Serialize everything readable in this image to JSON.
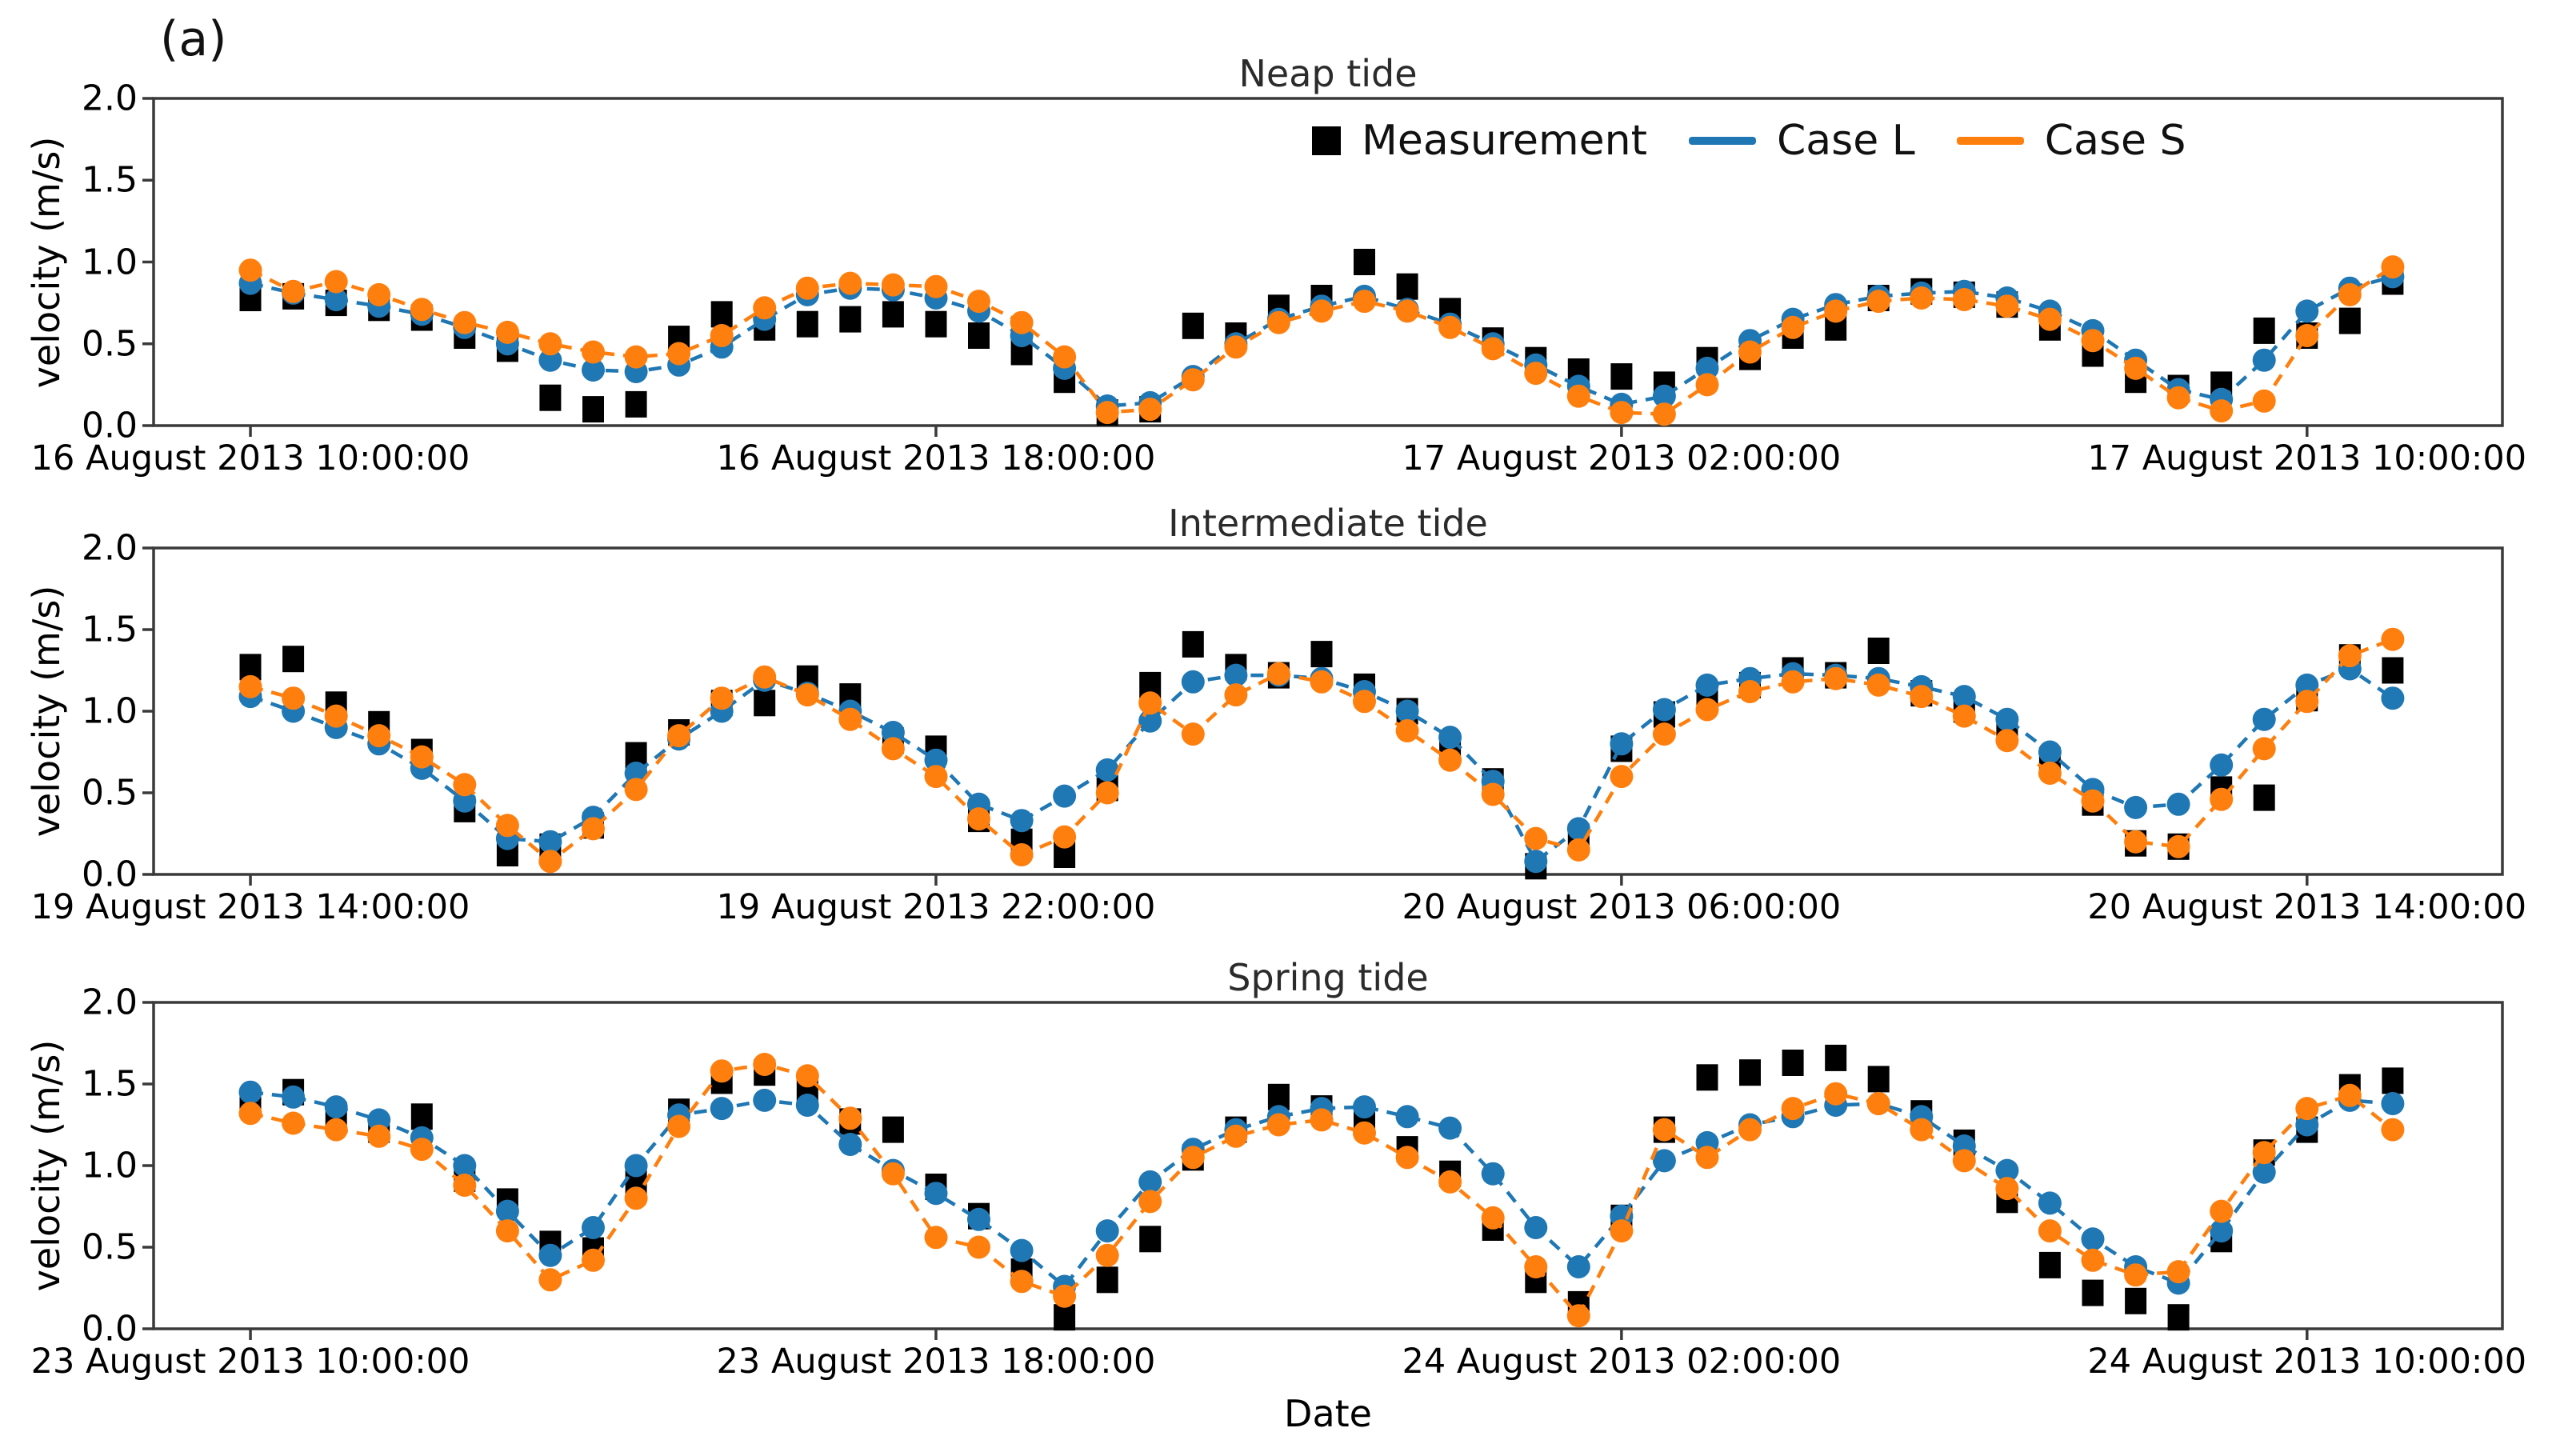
{
  "panel_label": "(a)",
  "ylabel": "velocity (m/s)",
  "xlabel": "Date",
  "ytick_labels": [
    "0.0",
    "0.5",
    "1.0",
    "1.5",
    "2.0"
  ],
  "ytick_values": [
    0,
    0.5,
    1.0,
    1.5,
    2.0
  ],
  "legend": [
    {
      "label": "Measurement",
      "color": "#000000",
      "type": "square"
    },
    {
      "label": "Case L",
      "color": "#1f77b4",
      "type": "line"
    },
    {
      "label": "Case S",
      "color": "#ff7f0e",
      "type": "line"
    }
  ],
  "chart_data": [
    {
      "type": "line",
      "title": "Neap tide",
      "ylabel": "velocity (m/s)",
      "ylim": [
        0,
        2.0
      ],
      "xlim_hours": [
        -1.13,
        26.28
      ],
      "xtick_hours": [
        0,
        8,
        16,
        24
      ],
      "xtick_labels": [
        "16 August 2013 10:00:00",
        "16 August 2013 18:00:00",
        "17 August 2013 02:00:00",
        "17 August 2013 10:00:00"
      ],
      "t_start_hours": 0,
      "t_step_hours": 0.5,
      "series": [
        {
          "name": "Measurement",
          "color": "#000000",
          "marker": "square",
          "line": false,
          "values": [
            0.78,
            0.79,
            0.75,
            0.72,
            0.66,
            0.55,
            0.47,
            0.17,
            0.1,
            0.13,
            0.53,
            0.68,
            0.6,
            0.62,
            0.65,
            0.68,
            0.62,
            0.55,
            0.45,
            0.28,
            0.08,
            0.1,
            0.61,
            0.55,
            0.72,
            0.78,
            1.0,
            0.85,
            0.7,
            0.52,
            0.4,
            0.33,
            0.3,
            0.25,
            0.4,
            0.42,
            0.55,
            0.6,
            0.78,
            0.82,
            0.8,
            0.74,
            0.6,
            0.44,
            0.28,
            0.23,
            0.25,
            0.58,
            0.55,
            0.64,
            0.88
          ]
        },
        {
          "name": "Case L",
          "color": "#1f77b4",
          "marker": "circle",
          "line": true,
          "values": [
            0.87,
            0.81,
            0.77,
            0.73,
            0.68,
            0.6,
            0.5,
            0.4,
            0.34,
            0.33,
            0.37,
            0.48,
            0.65,
            0.8,
            0.84,
            0.83,
            0.78,
            0.7,
            0.55,
            0.35,
            0.12,
            0.14,
            0.3,
            0.5,
            0.65,
            0.73,
            0.79,
            0.71,
            0.62,
            0.5,
            0.37,
            0.24,
            0.13,
            0.18,
            0.35,
            0.52,
            0.65,
            0.74,
            0.79,
            0.81,
            0.82,
            0.78,
            0.7,
            0.58,
            0.4,
            0.22,
            0.16,
            0.4,
            0.7,
            0.84,
            0.91
          ]
        },
        {
          "name": "Case S",
          "color": "#ff7f0e",
          "marker": "circle",
          "line": true,
          "values": [
            0.95,
            0.82,
            0.88,
            0.8,
            0.71,
            0.63,
            0.57,
            0.5,
            0.45,
            0.42,
            0.44,
            0.55,
            0.72,
            0.84,
            0.87,
            0.86,
            0.85,
            0.76,
            0.63,
            0.42,
            0.08,
            0.1,
            0.28,
            0.48,
            0.63,
            0.7,
            0.76,
            0.7,
            0.6,
            0.47,
            0.32,
            0.18,
            0.08,
            0.07,
            0.25,
            0.45,
            0.6,
            0.7,
            0.76,
            0.78,
            0.77,
            0.73,
            0.65,
            0.52,
            0.35,
            0.17,
            0.09,
            0.15,
            0.55,
            0.8,
            0.97
          ]
        }
      ]
    },
    {
      "type": "line",
      "title": "Intermediate tide",
      "ylabel": "velocity (m/s)",
      "ylim": [
        0,
        2.0
      ],
      "xlim_hours": [
        -1.13,
        26.28
      ],
      "xtick_hours": [
        0,
        8,
        16,
        24
      ],
      "xtick_labels": [
        "19 August 2013 14:00:00",
        "19 August 2013 22:00:00",
        "20 August 2013 06:00:00",
        "20 August 2013 14:00:00"
      ],
      "t_start_hours": 0,
      "t_step_hours": 0.5,
      "series": [
        {
          "name": "Measurement",
          "color": "#000000",
          "marker": "square",
          "line": false,
          "values": [
            1.27,
            1.32,
            1.04,
            0.92,
            0.75,
            0.4,
            0.13,
            0.17,
            0.3,
            0.73,
            0.87,
            1.05,
            1.05,
            1.2,
            1.09,
            0.82,
            0.77,
            0.34,
            0.2,
            0.12,
            0.53,
            1.16,
            1.41,
            1.27,
            1.22,
            1.35,
            1.15,
            1.0,
            0.76,
            0.57,
            0.05,
            0.23,
            0.77,
            0.98,
            1.07,
            1.16,
            1.25,
            1.22,
            1.37,
            1.11,
            1.01,
            0.88,
            0.7,
            0.44,
            0.19,
            0.17,
            0.52,
            0.47,
            1.08,
            1.33,
            1.25
          ]
        },
        {
          "name": "Case L",
          "color": "#1f77b4",
          "marker": "circle",
          "line": true,
          "values": [
            1.09,
            1.0,
            0.9,
            0.8,
            0.65,
            0.45,
            0.22,
            0.2,
            0.35,
            0.62,
            0.83,
            1.0,
            1.19,
            1.11,
            1.0,
            0.87,
            0.7,
            0.43,
            0.33,
            0.48,
            0.64,
            0.94,
            1.18,
            1.22,
            1.22,
            1.2,
            1.12,
            1.0,
            0.84,
            0.57,
            0.08,
            0.28,
            0.8,
            1.01,
            1.16,
            1.2,
            1.23,
            1.22,
            1.2,
            1.15,
            1.09,
            0.95,
            0.75,
            0.52,
            0.41,
            0.43,
            0.67,
            0.95,
            1.16,
            1.26,
            1.08
          ]
        },
        {
          "name": "Case S",
          "color": "#ff7f0e",
          "marker": "circle",
          "line": true,
          "values": [
            1.15,
            1.08,
            0.97,
            0.85,
            0.72,
            0.55,
            0.3,
            0.08,
            0.28,
            0.52,
            0.85,
            1.08,
            1.21,
            1.1,
            0.95,
            0.77,
            0.6,
            0.34,
            0.12,
            0.23,
            0.5,
            1.05,
            0.86,
            1.1,
            1.23,
            1.18,
            1.06,
            0.88,
            0.7,
            0.49,
            0.22,
            0.15,
            0.6,
            0.86,
            1.01,
            1.12,
            1.18,
            1.2,
            1.16,
            1.09,
            0.97,
            0.82,
            0.62,
            0.45,
            0.2,
            0.17,
            0.46,
            0.77,
            1.06,
            1.34,
            1.44
          ]
        }
      ]
    },
    {
      "type": "line",
      "title": "Spring tide",
      "ylabel": "velocity (m/s)",
      "ylim": [
        0,
        2.0
      ],
      "xlim_hours": [
        -1.13,
        26.28
      ],
      "xtick_hours": [
        0,
        8,
        16,
        24
      ],
      "xtick_labels": [
        "23 August 2013 10:00:00",
        "23 August 2013 18:00:00",
        "24 August 2013 02:00:00",
        "24 August 2013 10:00:00"
      ],
      "t_start_hours": 0,
      "t_step_hours": 0.5,
      "series": [
        {
          "name": "Measurement",
          "color": "#000000",
          "marker": "square",
          "line": false,
          "values": [
            1.38,
            1.45,
            1.31,
            1.22,
            1.3,
            0.92,
            0.78,
            0.52,
            0.48,
            0.9,
            1.33,
            1.52,
            1.57,
            1.47,
            1.27,
            1.22,
            0.87,
            0.69,
            0.35,
            0.07,
            0.3,
            0.55,
            1.05,
            1.22,
            1.42,
            1.35,
            1.28,
            1.1,
            0.95,
            0.62,
            0.3,
            0.15,
            0.68,
            1.22,
            1.54,
            1.57,
            1.63,
            1.66,
            1.53,
            1.32,
            1.14,
            0.79,
            0.39,
            0.22,
            0.17,
            0.07,
            0.55,
            1.08,
            1.22,
            1.48,
            1.52
          ]
        },
        {
          "name": "Case L",
          "color": "#1f77b4",
          "marker": "circle",
          "line": true,
          "values": [
            1.45,
            1.42,
            1.36,
            1.28,
            1.17,
            1.0,
            0.72,
            0.45,
            0.62,
            1.0,
            1.31,
            1.35,
            1.4,
            1.37,
            1.13,
            0.97,
            0.83,
            0.67,
            0.48,
            0.26,
            0.6,
            0.9,
            1.1,
            1.22,
            1.3,
            1.35,
            1.36,
            1.3,
            1.23,
            0.95,
            0.62,
            0.38,
            0.69,
            1.03,
            1.14,
            1.25,
            1.3,
            1.37,
            1.38,
            1.3,
            1.12,
            0.97,
            0.77,
            0.55,
            0.38,
            0.28,
            0.6,
            0.96,
            1.25,
            1.4,
            1.38
          ]
        },
        {
          "name": "Case S",
          "color": "#ff7f0e",
          "marker": "circle",
          "line": true,
          "values": [
            1.32,
            1.26,
            1.22,
            1.18,
            1.1,
            0.88,
            0.6,
            0.3,
            0.42,
            0.8,
            1.24,
            1.58,
            1.62,
            1.55,
            1.29,
            0.95,
            0.56,
            0.5,
            0.29,
            0.2,
            0.45,
            0.78,
            1.05,
            1.18,
            1.25,
            1.28,
            1.2,
            1.05,
            0.9,
            0.68,
            0.38,
            0.08,
            0.6,
            1.22,
            1.05,
            1.22,
            1.35,
            1.44,
            1.38,
            1.22,
            1.03,
            0.86,
            0.6,
            0.42,
            0.33,
            0.35,
            0.72,
            1.08,
            1.35,
            1.43,
            1.22
          ]
        }
      ]
    }
  ]
}
